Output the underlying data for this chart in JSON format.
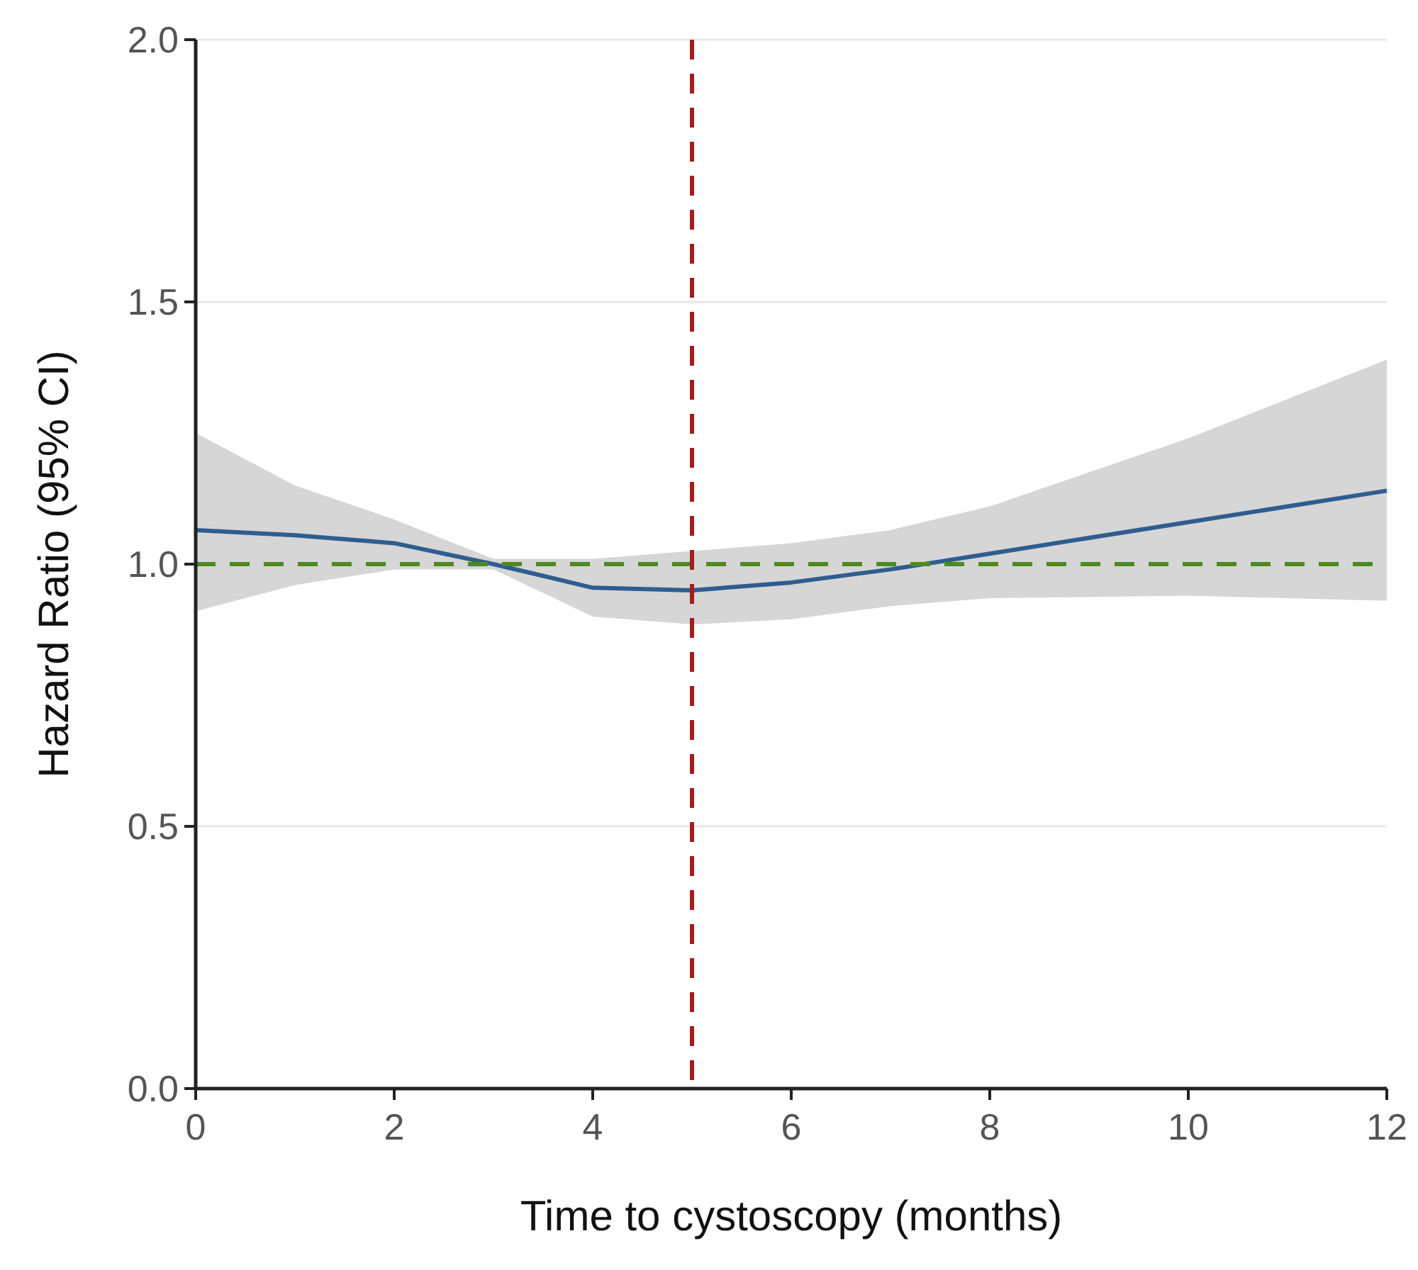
{
  "chart_data": {
    "type": "line",
    "xlabel": "Time to cystoscopy (months)",
    "ylabel": "Hazard Ratio (95% CI)",
    "x": [
      0,
      1,
      2,
      3,
      4,
      5,
      6,
      7,
      8,
      10,
      12
    ],
    "series": [
      {
        "color": "#2f5d8f",
        "values": [
          1.065,
          1.055,
          1.04,
          1.0,
          0.955,
          0.95,
          0.965,
          0.99,
          1.02,
          1.08,
          1.14
        ],
        "lower": [
          0.91,
          0.96,
          0.99,
          0.99,
          0.9,
          0.885,
          0.895,
          0.92,
          0.935,
          0.94,
          0.93
        ],
        "upper": [
          1.25,
          1.15,
          1.085,
          1.01,
          1.01,
          1.025,
          1.04,
          1.065,
          1.11,
          1.24,
          1.39
        ]
      }
    ],
    "xlim": [
      0,
      12
    ],
    "xticks": [
      0,
      2,
      4,
      6,
      8,
      10,
      12
    ],
    "ylim": [
      0,
      2
    ],
    "yticks": [
      {
        "value": 0,
        "label": "0.0"
      },
      {
        "value": 0.5,
        "label": "0.5"
      },
      {
        "value": 1,
        "label": "1.0"
      },
      {
        "value": 1.5,
        "label": "1.5"
      },
      {
        "value": 2,
        "label": "2.0"
      }
    ],
    "grid": "y",
    "line_style": "solid",
    "ref_lines": [
      {
        "axis": "y",
        "value": 1,
        "color": "#4d8a1f",
        "line_style": "dashed"
      },
      {
        "axis": "x",
        "value": 5,
        "color": "#a51c1c",
        "line_style": "dashed"
      }
    ]
  }
}
